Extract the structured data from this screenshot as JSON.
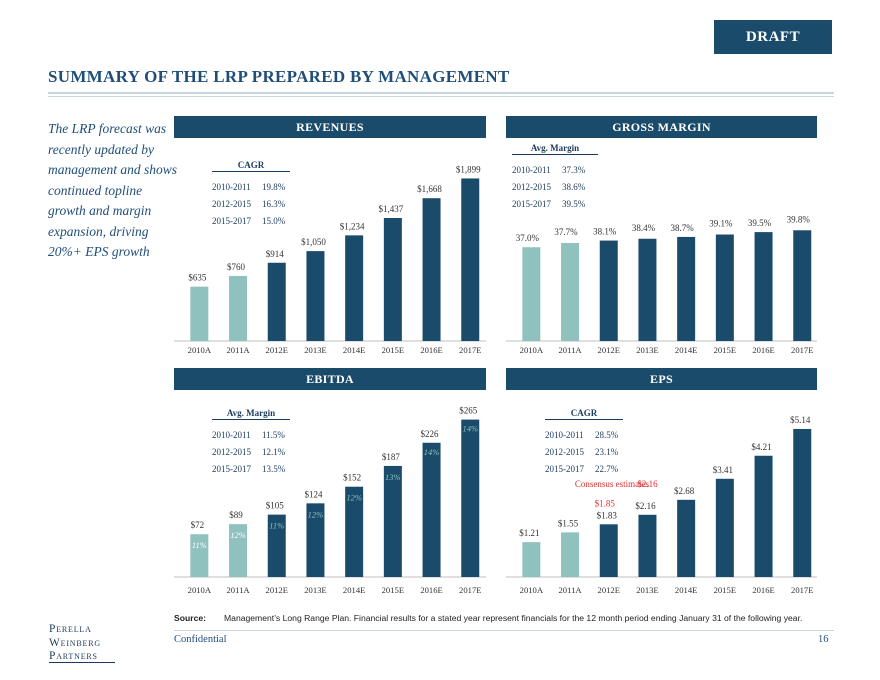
{
  "header": {
    "draft_label": "DRAFT",
    "title": "SUMMARY OF THE LRP PREPARED BY MANAGEMENT"
  },
  "intro_text": "The LRP forecast was recently updated by management and shows continued topline growth and margin expansion, driving 20%+ EPS growth",
  "colors": {
    "navy": "#1b4b6b",
    "bar_actual": "#8fc1bf",
    "bar_projected": "#1b4b6b",
    "highlight_red": "#e03030"
  },
  "charts": {
    "revenues": {
      "title": "REVENUES",
      "info_box": {
        "header": "CAGR",
        "rows": [
          {
            "period": "2010-2011",
            "value": "19.8%"
          },
          {
            "period": "2012-2015",
            "value": "16.3%"
          },
          {
            "period": "2015-2017",
            "value": "15.0%"
          }
        ]
      }
    },
    "gross_margin": {
      "title": "GROSS MARGIN",
      "info_box": {
        "header": "Avg. Margin",
        "rows": [
          {
            "period": "2010-2011",
            "value": "37.3%"
          },
          {
            "period": "2012-2015",
            "value": "38.6%"
          },
          {
            "period": "2015-2017",
            "value": "39.5%"
          }
        ]
      }
    },
    "ebitda": {
      "title": "EBITDA",
      "info_box": {
        "header": "Avg. Margin",
        "rows": [
          {
            "period": "2010-2011",
            "value": "11.5%"
          },
          {
            "period": "2012-2015",
            "value": "12.1%"
          },
          {
            "period": "2015-2017",
            "value": "13.5%"
          }
        ]
      }
    },
    "eps": {
      "title": "EPS",
      "info_box": {
        "header": "CAGR",
        "rows": [
          {
            "period": "2010-2011",
            "value": "28.5%"
          },
          {
            "period": "2012-2015",
            "value": "23.1%"
          },
          {
            "period": "2015-2017",
            "value": "22.7%"
          }
        ]
      },
      "consensus_label": "Consensus estimates"
    }
  },
  "chart_data": [
    {
      "id": "revenues",
      "type": "bar",
      "categories": [
        "2010A",
        "2011A",
        "2012E",
        "2013E",
        "2014E",
        "2015E",
        "2016E",
        "2017E"
      ],
      "values": [
        635,
        760,
        914,
        1050,
        1234,
        1437,
        1668,
        1899
      ],
      "labels": [
        "$635",
        "$760",
        "$914",
        "$1,050",
        "$1,234",
        "$1,437",
        "$1,668",
        "$1,899"
      ],
      "actual_count": 2
    },
    {
      "id": "gross_margin",
      "type": "bar",
      "categories": [
        "2010A",
        "2011A",
        "2012E",
        "2013E",
        "2014E",
        "2015E",
        "2016E",
        "2017E"
      ],
      "values": [
        37.0,
        37.7,
        38.1,
        38.4,
        38.7,
        39.1,
        39.5,
        39.8
      ],
      "labels": [
        "37.0%",
        "37.7%",
        "38.1%",
        "38.4%",
        "38.7%",
        "39.1%",
        "39.5%",
        "39.8%"
      ],
      "actual_count": 2
    },
    {
      "id": "ebitda",
      "type": "bar",
      "categories": [
        "2010A",
        "2011A",
        "2012E",
        "2013E",
        "2014E",
        "2015E",
        "2016E",
        "2017E"
      ],
      "values": [
        72,
        89,
        105,
        124,
        152,
        187,
        226,
        265
      ],
      "labels": [
        "$72",
        "$89",
        "$105",
        "$124",
        "$152",
        "$187",
        "$226",
        "$265"
      ],
      "margin_labels": [
        "11%",
        "12%",
        "11%",
        "12%",
        "12%",
        "13%",
        "14%",
        "14%"
      ],
      "actual_count": 2
    },
    {
      "id": "eps",
      "type": "bar",
      "categories": [
        "2010A",
        "2011A",
        "2012E",
        "2013E",
        "2014E",
        "2015E",
        "2016E",
        "2017E"
      ],
      "values": [
        1.21,
        1.55,
        1.83,
        2.16,
        2.68,
        3.41,
        4.21,
        5.14
      ],
      "labels": [
        "$1.21",
        "$1.55",
        "$1.83",
        "$2.16",
        "$2.68",
        "$3.41",
        "$4.21",
        "$5.14"
      ],
      "consensus": [
        null,
        null,
        1.85,
        2.16,
        null,
        null,
        null,
        null
      ],
      "consensus_labels": [
        null,
        null,
        "$1.85",
        "$2.16",
        null,
        null,
        null,
        null
      ],
      "actual_count": 2
    }
  ],
  "footer": {
    "source_label": "Source:",
    "source_text": "Management’s Long Range Plan. Financial results for a stated year represent financials for the 12 month period ending January 31 of the following year.",
    "confidential": "Confidential",
    "page_number": "16",
    "logo_lines": [
      "Perella",
      "Weinberg",
      "Partners"
    ]
  }
}
